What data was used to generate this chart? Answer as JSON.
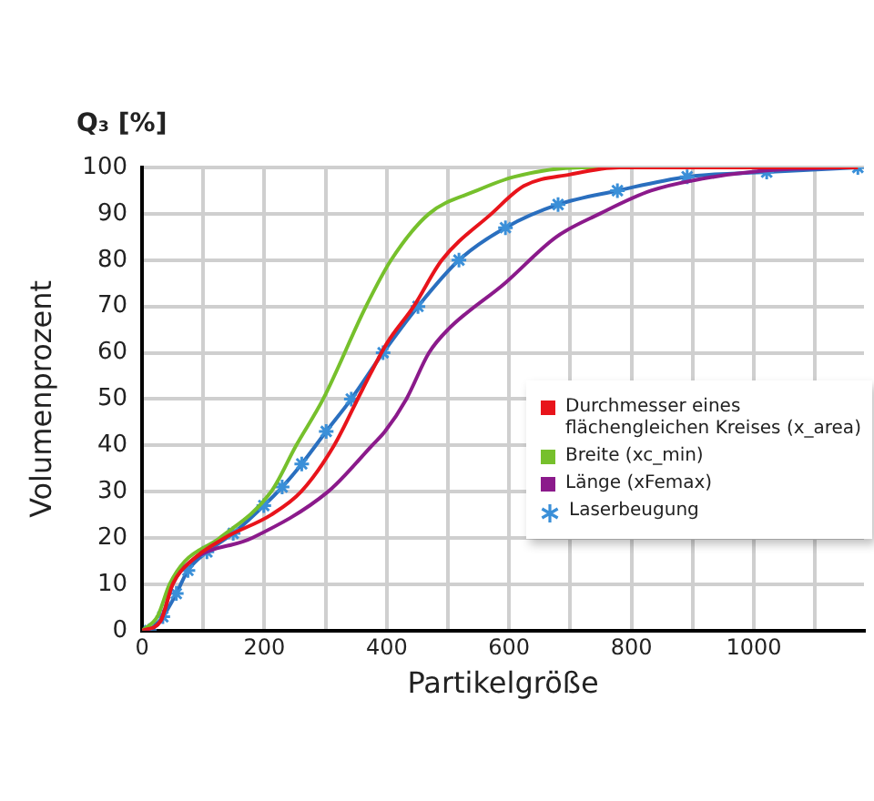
{
  "chart_data": {
    "type": "line",
    "title": "Q₃ [%]",
    "xlabel": "Partikelgröße",
    "ylabel": "Volumenprozent",
    "xlim": [
      0,
      1180
    ],
    "xticks": [
      0,
      {
        "value": 100,
        "label": null
      },
      200,
      {
        "value": 300,
        "label": null
      },
      400,
      {
        "value": 500,
        "label": null
      },
      600,
      {
        "value": 700,
        "label": null
      },
      800,
      {
        "value": 900,
        "label": null
      },
      1000,
      {
        "value": 1100,
        "label": null
      }
    ],
    "ylim": [
      0,
      100
    ],
    "yticks": [
      0,
      10,
      20,
      30,
      40,
      50,
      60,
      70,
      80,
      90,
      100
    ],
    "grid": true,
    "legend": "right",
    "marker": "none",
    "line_style": "solid",
    "series": [
      {
        "name": "Durchmesser eines flächengleichen Kreises (x_area)",
        "color": "#e8141b",
        "x": [
          0,
          30,
          50,
          80,
          135,
          211,
          260,
          314,
          360,
          400,
          444,
          490,
          571,
          624,
          700,
          780,
          900,
          1170
        ],
        "values": [
          0,
          2,
          10,
          15,
          20,
          25,
          30,
          40,
          52,
          62,
          70,
          80,
          90,
          96,
          98.5,
          100,
          100,
          100
        ]
      },
      {
        "name": "Breite (xc_min)",
        "color": "#76c02c",
        "x": [
          0,
          25,
          45,
          70,
          127,
          211,
          252,
          296,
          366,
          407,
          469,
          547,
          609,
          717,
          900,
          1170
        ],
        "values": [
          0,
          3,
          10,
          15,
          20,
          30,
          40,
          50,
          70,
          80,
          90,
          95,
          98,
          100,
          100,
          100
        ]
      },
      {
        "name": "Länge (xFemax)",
        "color": "#8b1a8b",
        "x": [
          0,
          30,
          50,
          80,
          180,
          304,
          376,
          397,
          432,
          469,
          500,
          593,
          677,
          748,
          832,
          935,
          1037,
          1143
        ],
        "values": [
          0,
          2,
          10,
          15,
          20,
          30,
          40,
          43,
          50,
          60,
          65,
          75,
          85,
          90,
          95,
          98,
          99.5,
          100
        ]
      },
      {
        "name": "Laserbeugung",
        "color": "#2a6fbf",
        "marker": "cross",
        "x": [
          12,
          34,
          56,
          75,
          106,
          149,
          199,
          229,
          261,
          301,
          342,
          394,
          451,
          518,
          594,
          680,
          777,
          891,
          1021,
          1170
        ],
        "values": [
          0,
          3,
          8,
          13,
          17,
          21,
          27,
          31,
          36,
          43,
          50,
          60,
          70,
          80,
          87,
          92,
          95,
          98,
          99,
          100
        ]
      }
    ]
  }
}
